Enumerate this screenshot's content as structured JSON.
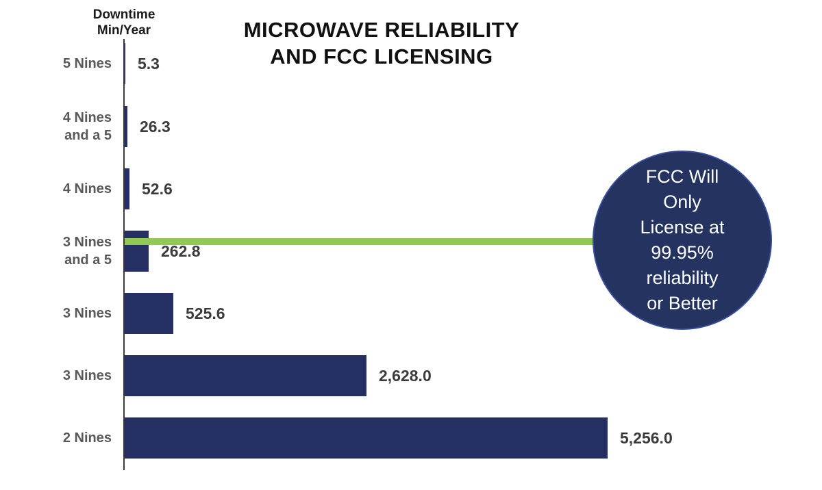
{
  "header": {
    "axis_label": "Downtime\nMin/Year"
  },
  "title": {
    "text": "MICROWAVE RELIABILITY\nAND FCC LICENSING"
  },
  "annotation": {
    "lines": [
      "FCC Will",
      "Only",
      "License at",
      "99.95%",
      "reliability",
      "or Better"
    ],
    "full_text": "FCC Will Only License at 99.95% reliability or Better",
    "bg_color": "#24335f",
    "text_color": "#ffffff"
  },
  "colors": {
    "bar": "#252f62",
    "threshold_line": "#92c956",
    "axis": "#3a3a3a",
    "category_label": "#595959",
    "value_label": "#3b3b3b",
    "title": "#111111"
  },
  "chart_data": {
    "type": "bar",
    "orientation": "horizontal",
    "title": "MICROWAVE RELIABILITY AND FCC LICENSING",
    "ylabel": "Downtime Min/Year",
    "xlabel": "",
    "categories": [
      "5 Nines",
      "4 Nines and a 5",
      "4 Nines",
      "3 Nines and a 5",
      "3 Nines",
      "3 Nines",
      "2 Nines"
    ],
    "display_categories": [
      "5 Nines",
      "4 Nines\nand a 5",
      "4 Nines",
      "3 Nines\nand a 5",
      "3 Nines",
      "3 Nines",
      "2 Nines"
    ],
    "values": [
      5.3,
      26.3,
      52.6,
      262.8,
      525.6,
      2628.0,
      5256.0
    ],
    "value_labels": [
      "5.3",
      "26.3",
      "52.6",
      "262.8",
      "525.6",
      "2,628.0",
      "5,256.0"
    ],
    "xlim": [
      0,
      5256
    ],
    "grid": false,
    "legend": false,
    "threshold": {
      "at_category": "3 Nines and a 5",
      "approx_value": 262.8,
      "color": "#92c956",
      "annotation": "FCC Will Only License at 99.95% reliability or Better"
    }
  }
}
